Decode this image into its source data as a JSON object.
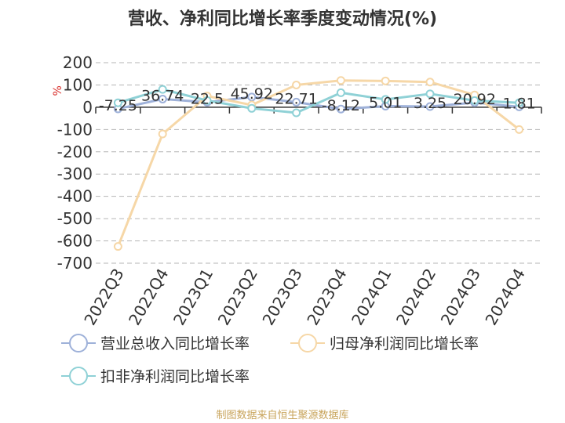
{
  "title": "营收、净利同比增长率季度变动情况(%)",
  "source": "制图数据来自恒生聚源数据库",
  "chart_data": {
    "type": "line",
    "ylabel": "%",
    "ylim": [
      -700,
      200
    ],
    "yticks": [
      200,
      100,
      0,
      -100,
      -200,
      -300,
      -400,
      -500,
      -600,
      -700
    ],
    "categories": [
      "2022Q3",
      "2022Q4",
      "2023Q1",
      "2023Q2",
      "2023Q3",
      "2023Q4",
      "2024Q1",
      "2024Q2",
      "2024Q3",
      "2024Q4"
    ],
    "grid": true,
    "legend_position": "bottom",
    "series": [
      {
        "name": "营业总收入同比增长率",
        "color": "#9eb1d9",
        "values": [
          -7.25,
          36.74,
          22.5,
          45.92,
          22.71,
          -8.12,
          5.01,
          3.25,
          20.92,
          1.81
        ],
        "labels": [
          "-7.25",
          "36.74",
          "22.5",
          "45.92",
          "22.71",
          "-8.12",
          "5.01",
          "3.25",
          "20.92",
          "1.81"
        ]
      },
      {
        "name": "归母净利润同比增长率",
        "color": "#f6d7a7",
        "values": [
          -625,
          -120,
          50,
          10,
          100,
          120,
          118,
          113,
          55,
          -100
        ]
      },
      {
        "name": "扣非净利润同比增长率",
        "color": "#8fd1d6",
        "values": [
          20,
          80,
          30,
          -5,
          -25,
          65,
          35,
          60,
          30,
          20
        ]
      }
    ]
  }
}
